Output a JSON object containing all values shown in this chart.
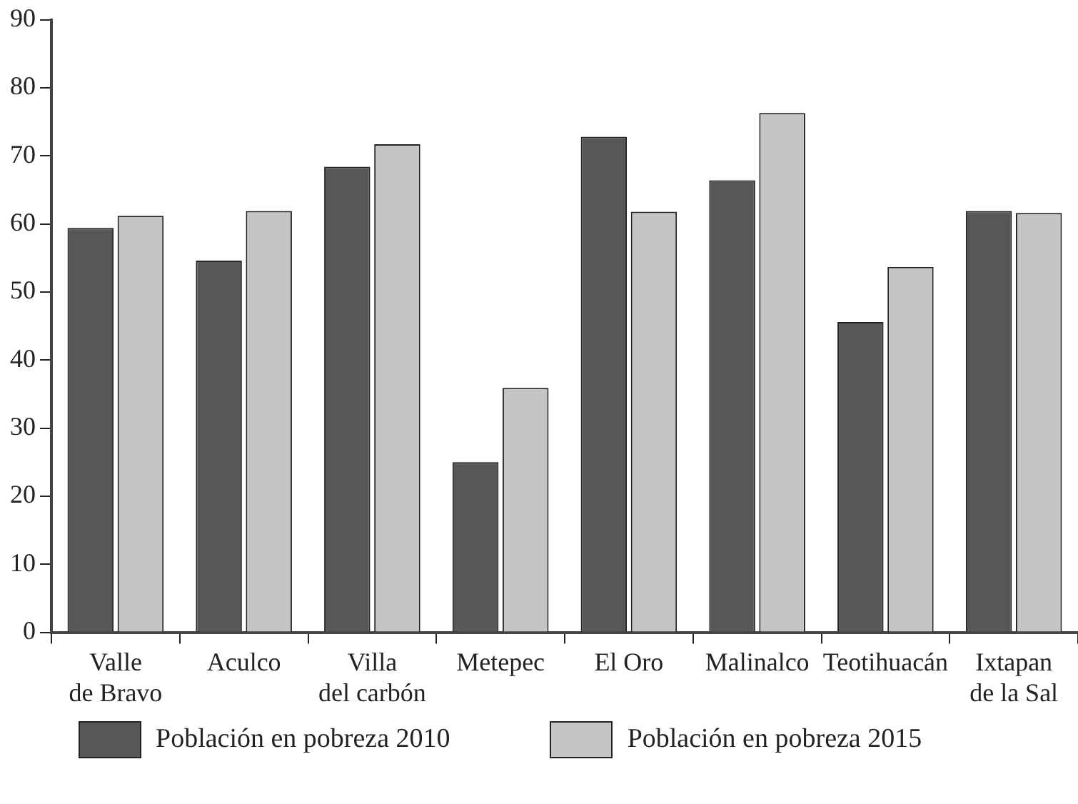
{
  "chart_data": {
    "type": "bar",
    "categories": [
      "Valle de Bravo",
      "Aculco",
      "Villa del carbón",
      "Metepec",
      "El Oro",
      "Malinalco",
      "Teotihuacán",
      "Ixtapan de la Sal"
    ],
    "series": [
      {
        "name": "Población en pobreza 2010",
        "color": "#575755",
        "values": [
          59.4,
          54.6,
          68.4,
          25.0,
          72.8,
          66.4,
          45.6,
          61.9
        ]
      },
      {
        "name": "Población en pobreza 2015",
        "color": "#c5c5c5",
        "values": [
          61.2,
          61.9,
          71.7,
          35.9,
          61.8,
          76.3,
          53.7,
          61.6
        ]
      }
    ],
    "ylim": [
      0,
      90
    ],
    "yticks": [
      0,
      10,
      20,
      30,
      40,
      50,
      60,
      70,
      80,
      90
    ],
    "legend": "bottom"
  }
}
